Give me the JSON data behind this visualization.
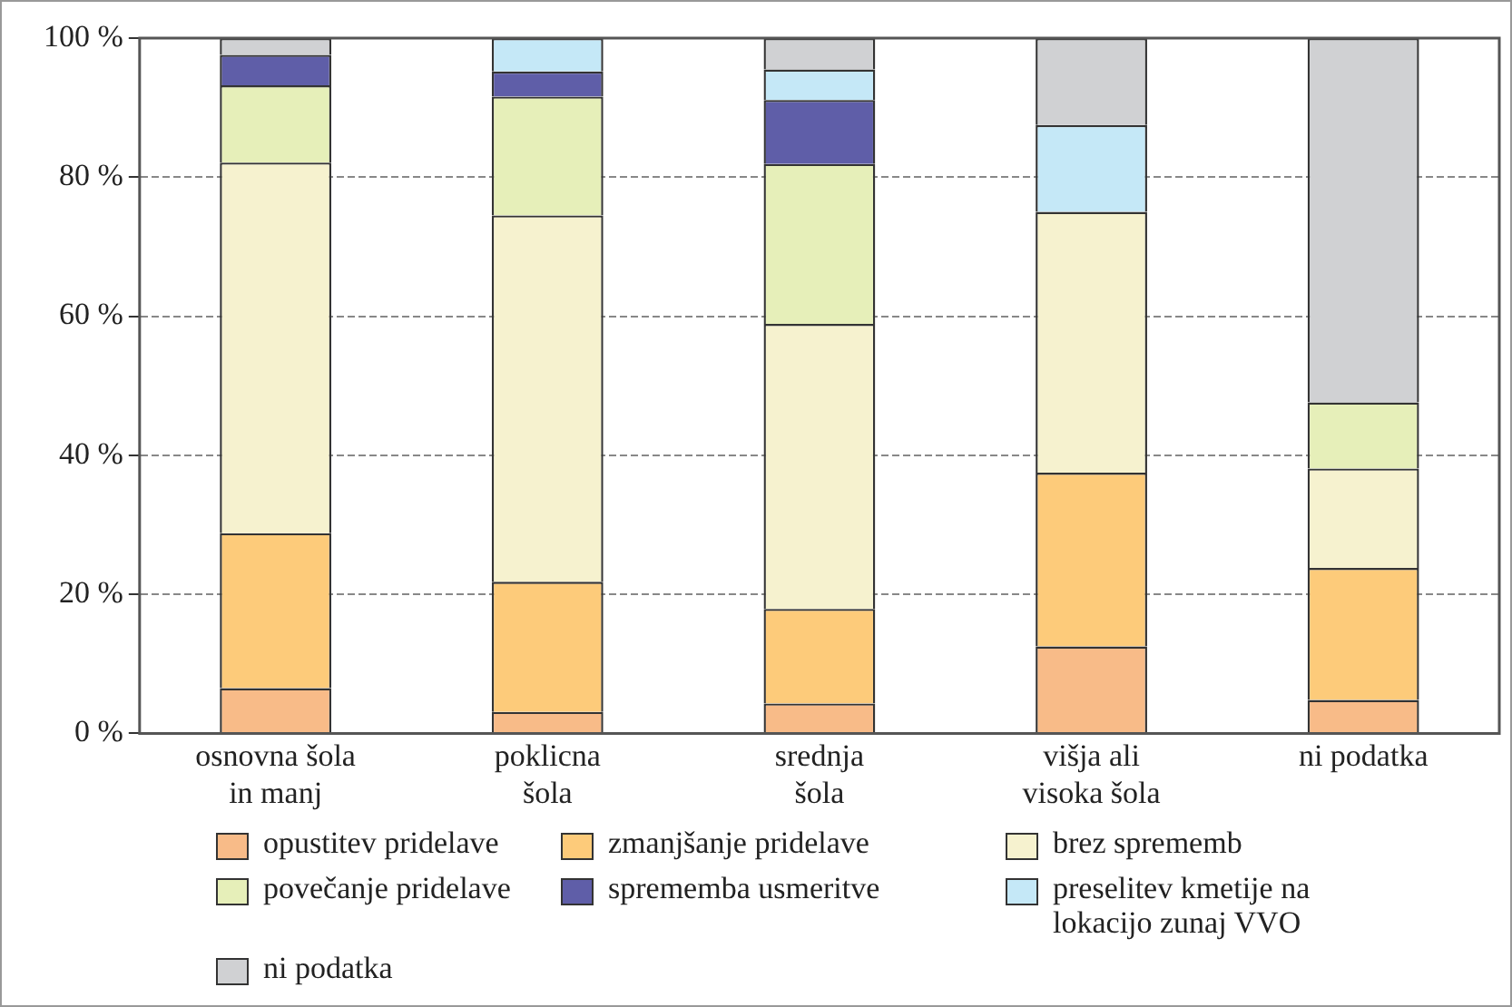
{
  "chart_data": {
    "type": "bar",
    "stacked": true,
    "categories": [
      "osnovna šola\nin manj",
      "poklicna\nšola",
      "srednja\nšola",
      "višja ali\nvisoka šola",
      "ni podatka"
    ],
    "series": [
      {
        "name": "opustitev pridelave",
        "color": "#f8bb88",
        "values": [
          6.5,
          3.1,
          4.3,
          12.5,
          4.8
        ]
      },
      {
        "name": "zmanjšanje pridelave",
        "color": "#fdcb7a",
        "values": [
          22.3,
          18.7,
          13.6,
          25,
          19
        ]
      },
      {
        "name": "brez sprememb",
        "color": "#f6f2cf",
        "values": [
          53.3,
          52.7,
          41,
          37.5,
          14.3
        ]
      },
      {
        "name": "povečanje pridelave",
        "color": "#e6efb9",
        "values": [
          11.1,
          17.1,
          23,
          0,
          9.5
        ]
      },
      {
        "name": "sprememba usmeritve",
        "color": "#5f5ea8",
        "values": [
          4.4,
          3.6,
          9.2,
          0,
          0
        ]
      },
      {
        "name": "preselitev kmetije na lokacijo zunaj VVO",
        "color": "#c5e8f7",
        "values": [
          0,
          4.8,
          4.4,
          12.5,
          0
        ]
      },
      {
        "name": "ni podatka",
        "color": "#d0d1d3",
        "values": [
          2.4,
          0,
          4.5,
          12.5,
          52.4
        ]
      }
    ],
    "ylim": [
      0,
      100
    ],
    "yticks": [
      {
        "value": 0,
        "label": "0 %"
      },
      {
        "value": 20,
        "label": "20 %"
      },
      {
        "value": 40,
        "label": "40 %"
      },
      {
        "value": 60,
        "label": "60 %"
      },
      {
        "value": 80,
        "label": "80 %"
      },
      {
        "value": 100,
        "label": "100 %"
      }
    ],
    "grid": "y",
    "legend": "bottom"
  }
}
